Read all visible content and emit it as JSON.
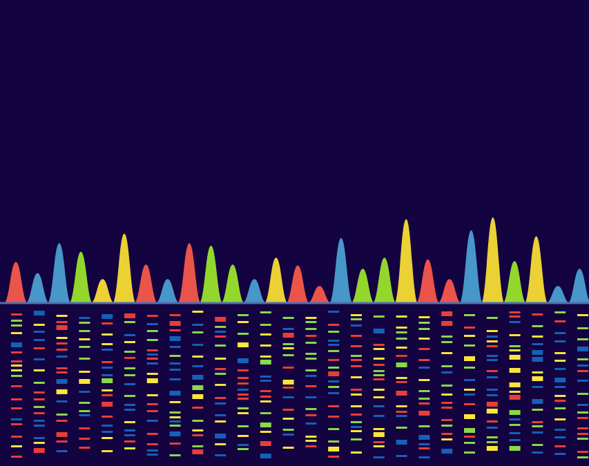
{
  "illustration": {
    "subject": "dna-sequencing-chromatogram",
    "colors": {
      "background": "#140341",
      "red": "#F6584B",
      "blue": "#4A9FD0",
      "green": "#9AE32C",
      "yellow": "#F7DC34",
      "band_red": "#E93E37",
      "band_blue": "#1560B8",
      "band_green": "#8BD84A",
      "band_yellow": "#F9E63B",
      "baseline": "#4F6FB0"
    },
    "peak_sequence": [
      "red",
      "blue",
      "blue",
      "green",
      "yellow",
      "yellow",
      "red",
      "blue",
      "red",
      "green",
      "green",
      "blue",
      "yellow",
      "red",
      "red",
      "blue",
      "green",
      "green",
      "yellow",
      "red",
      "red",
      "blue",
      "yellow",
      "green",
      "yellow",
      "blue",
      "blue"
    ],
    "peak_levels": [
      0.48,
      0.35,
      0.7,
      0.6,
      0.28,
      0.81,
      0.45,
      0.28,
      0.7,
      0.67,
      0.45,
      0.28,
      0.53,
      0.44,
      0.2,
      0.76,
      0.4,
      0.53,
      0.98,
      0.51,
      0.28,
      0.85,
      1.0,
      0.49,
      0.78,
      0.2,
      0.4
    ]
  }
}
